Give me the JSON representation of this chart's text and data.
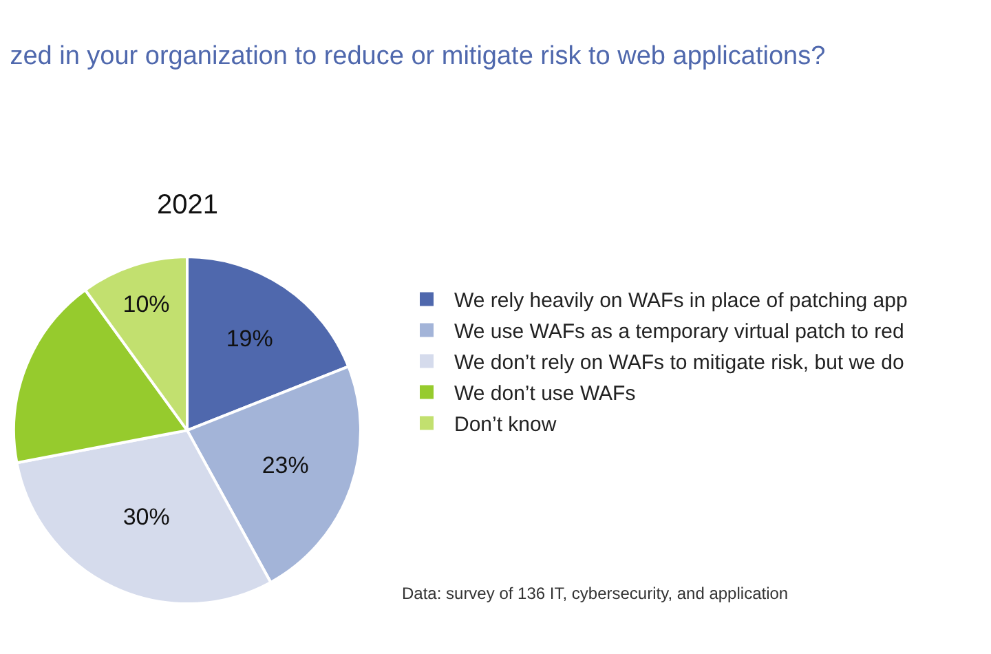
{
  "chart_data": {
    "type": "pie",
    "title": "zed in your organization to reduce or mitigate risk to web applications?",
    "subtitle": "2021",
    "categories": [
      "We rely heavily on WAFs in place of patching app",
      "We use WAFs as a temporary virtual patch to red",
      "We don’t rely on WAFs to mitigate risk, but we do",
      "We don’t use WAFs",
      "Don’t know"
    ],
    "values": [
      19,
      23,
      30,
      18,
      10
    ],
    "colors": [
      "#4f68ad",
      "#a3b4d8",
      "#d5dbec",
      "#96cb2d",
      "#c2e06f"
    ],
    "value_labels": [
      "19%",
      "23%",
      "30%",
      null,
      "10%"
    ],
    "legend": "right",
    "annotations": [
      "Data: survey of 136 IT, cybersecurity, and application"
    ]
  }
}
